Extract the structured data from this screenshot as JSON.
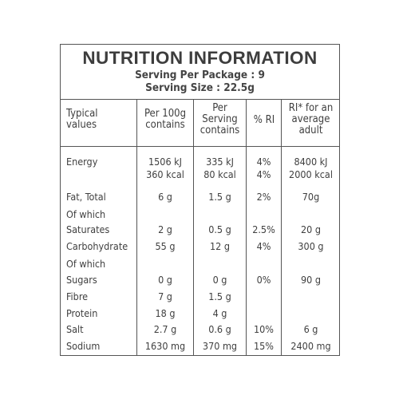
{
  "title": "NUTRITION INFORMATION",
  "serving_per_package": "Serving Per Package : 9",
  "serving_size": "Serving Size : 22.5g",
  "headers": {
    "typical": "Typical values",
    "per100": "Per 100g contains",
    "perserving": "Per Serving contains",
    "ri": "% RI",
    "riadult": "RI* for an average adult"
  },
  "rows": [
    {
      "label": "Energy",
      "per100": "1506 kJ",
      "perserving": "335 kJ",
      "ri": "4%",
      "riadult": "8400 kJ"
    },
    {
      "label": "",
      "per100": "360 kcal",
      "perserving": "80 kcal",
      "ri": "4%",
      "riadult": "2000 kcal"
    },
    {
      "label": "Fat, Total",
      "per100": "6 g",
      "perserving": "1.5 g",
      "ri": "2%",
      "riadult": "70g"
    },
    {
      "label": "Of which",
      "per100": "",
      "perserving": "",
      "ri": "",
      "riadult": ""
    },
    {
      "label": "Saturates",
      "per100": "2 g",
      "perserving": "0.5 g",
      "ri": "2.5%",
      "riadult": "20 g"
    },
    {
      "label": "Carbohydrate",
      "per100": "55 g",
      "perserving": "12 g",
      "ri": "4%",
      "riadult": "300 g"
    },
    {
      "label": "Of which",
      "per100": "",
      "perserving": "",
      "ri": "",
      "riadult": ""
    },
    {
      "label": "Sugars",
      "per100": "0 g",
      "perserving": "0 g",
      "ri": "0%",
      "riadult": "90 g"
    },
    {
      "label": "Fibre",
      "per100": "7 g",
      "perserving": "1.5 g",
      "ri": "",
      "riadult": ""
    },
    {
      "label": "Protein",
      "per100": "18 g",
      "perserving": "4 g",
      "ri": "",
      "riadult": ""
    },
    {
      "label": "Salt",
      "per100": "2.7 g",
      "perserving": "0.6 g",
      "ri": "10%",
      "riadult": "6 g"
    },
    {
      "label": "Sodium",
      "per100": "1630 mg",
      "perserving": "370 mg",
      "ri": "15%",
      "riadult": "2400 mg"
    }
  ]
}
